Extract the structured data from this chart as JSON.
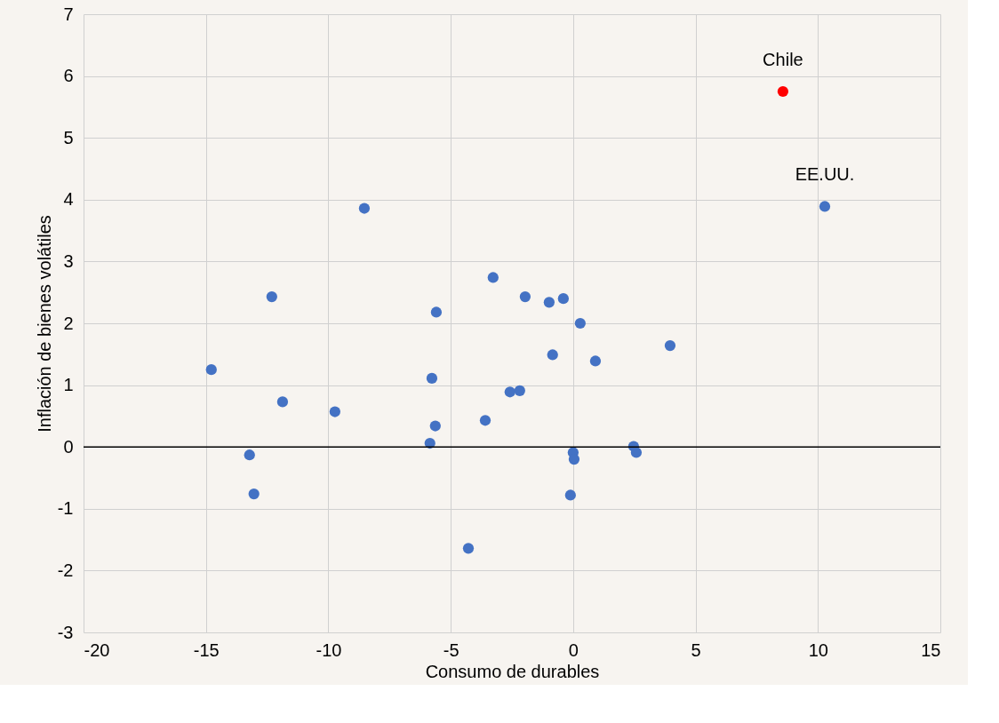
{
  "chart_data": {
    "type": "scatter",
    "xlabel": "Consumo de durables",
    "ylabel": "Inflación de bienes volátiles",
    "series": [
      {
        "color": "#4472c4",
        "x": [
          10.28,
          -8.53,
          -3.27,
          -12.31,
          -1.96,
          -0.4,
          -0.98,
          -5.59,
          0.29,
          3.96,
          -0.84,
          0.91,
          -14.78,
          -5.77,
          -2.58,
          -2.18,
          -11.87,
          -9.73,
          -3.59,
          -5.63,
          -5.85,
          2.47,
          2.58,
          0.0,
          0.04,
          -13.22,
          -13.04,
          -0.11,
          -4.28
        ],
        "values": [
          3.89,
          3.86,
          2.74,
          2.43,
          2.43,
          2.4,
          2.34,
          2.18,
          2.0,
          1.64,
          1.49,
          1.39,
          1.25,
          1.11,
          0.89,
          0.91,
          0.73,
          0.57,
          0.43,
          0.34,
          0.06,
          0.01,
          -0.09,
          -0.09,
          -0.2,
          -0.13,
          -0.76,
          -0.78,
          -1.64
        ]
      },
      {
        "color": "#ff0000",
        "x": [
          8.57
        ],
        "values": [
          5.75
        ]
      }
    ],
    "annotations": [
      {
        "text": "Chile",
        "x": 8.57,
        "y": 5.75
      },
      {
        "text": "EE.UU.",
        "x": 10.28,
        "y": 3.89
      }
    ],
    "ref_lines": [
      {
        "axis": "y",
        "value": 0,
        "color": "#000000"
      }
    ],
    "xlim": [
      -20,
      15
    ],
    "xticks": [
      -20,
      -15,
      -10,
      -5,
      0,
      5,
      10,
      15
    ],
    "ylim": [
      -3,
      7
    ],
    "yticks": [
      -3,
      -2,
      -1,
      0,
      1,
      2,
      3,
      4,
      5,
      6,
      7
    ],
    "grid": true,
    "marker": "circle"
  }
}
